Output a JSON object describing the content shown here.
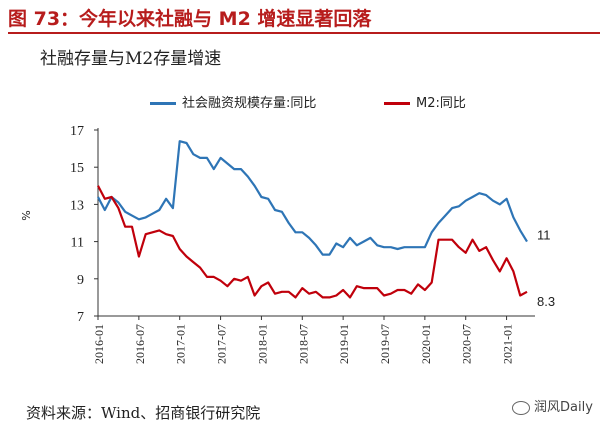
{
  "figure_title": "图 73：今年以来社融与 M2 增速显著回落",
  "source_text": "资料来源：Wind、招商银行研究院",
  "watermark_text": "润风Daily",
  "colors": {
    "title": "#b71c1c",
    "series_blue": "#2e75b6",
    "series_red": "#c0000b"
  },
  "chart_data": {
    "type": "line",
    "title": "社融存量与M2存量增速",
    "xlabel": "",
    "ylabel": "%",
    "ylim": [
      7,
      17
    ],
    "y_ticks": [
      7,
      9,
      11,
      13,
      15,
      17
    ],
    "x_tick_labels": [
      "2016-01",
      "2016-07",
      "2017-01",
      "2017-07",
      "2018-01",
      "2018-07",
      "2019-01",
      "2019-07",
      "2020-01",
      "2020-07",
      "2021-01"
    ],
    "grid": false,
    "legend_position": "top",
    "start_month": "2016-01",
    "series": [
      {
        "name": "社会融资规模存量:同比",
        "color": "#2e75b6",
        "end_label": "11",
        "values": [
          13.4,
          12.7,
          13.4,
          13.1,
          12.6,
          12.4,
          12.2,
          12.3,
          12.5,
          12.7,
          13.3,
          12.8,
          16.4,
          16.3,
          15.7,
          15.5,
          15.5,
          14.9,
          15.5,
          15.2,
          14.9,
          14.9,
          14.5,
          14.0,
          13.4,
          13.3,
          12.7,
          12.6,
          12.0,
          11.5,
          11.5,
          11.2,
          10.8,
          10.3,
          10.3,
          10.9,
          10.7,
          11.2,
          10.8,
          11.0,
          11.2,
          10.8,
          10.7,
          10.7,
          10.6,
          10.7,
          10.7,
          10.7,
          10.7,
          11.5,
          12.0,
          12.4,
          12.8,
          12.9,
          13.2,
          13.4,
          13.6,
          13.5,
          13.2,
          13.0,
          13.3,
          12.3,
          11.6,
          11.0
        ]
      },
      {
        "name": "M2:同比",
        "color": "#c0000b",
        "end_label": "8.3",
        "values": [
          14.0,
          13.3,
          13.4,
          12.8,
          11.8,
          11.8,
          10.2,
          11.4,
          11.5,
          11.6,
          11.4,
          11.3,
          10.6,
          10.2,
          9.9,
          9.6,
          9.1,
          9.1,
          8.9,
          8.6,
          9.0,
          8.9,
          9.1,
          8.1,
          8.6,
          8.8,
          8.2,
          8.3,
          8.3,
          8.0,
          8.5,
          8.2,
          8.3,
          8.0,
          8.0,
          8.1,
          8.4,
          8.0,
          8.6,
          8.5,
          8.5,
          8.5,
          8.1,
          8.2,
          8.4,
          8.4,
          8.2,
          8.7,
          8.4,
          8.8,
          11.1,
          11.1,
          11.1,
          10.7,
          10.4,
          11.1,
          10.5,
          10.7,
          10.0,
          9.4,
          10.1,
          9.4,
          8.1,
          8.3
        ]
      }
    ]
  }
}
